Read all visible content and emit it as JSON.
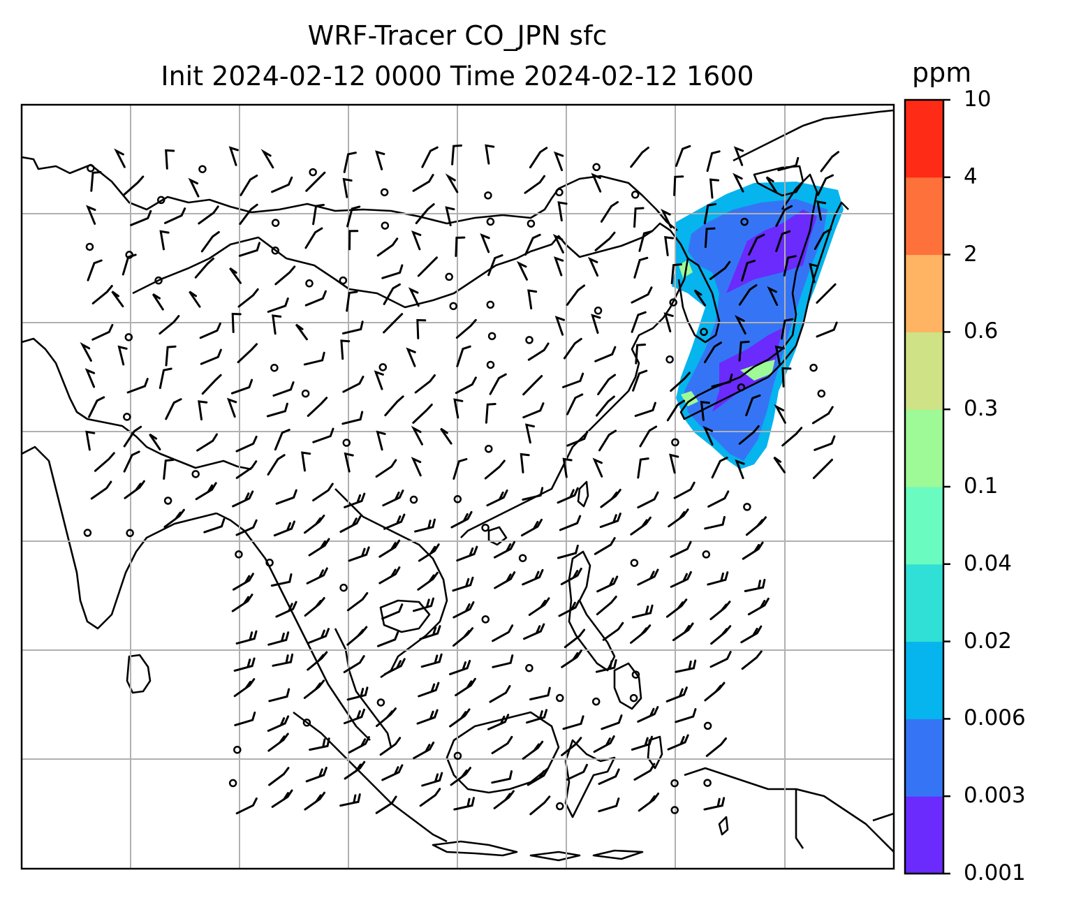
{
  "title": {
    "line1": "WRF-Tracer CO_JPN sfc",
    "line2": "Init 2024-02-12 0000 Time 2024-02-12 1600"
  },
  "colorbar": {
    "unit": "ppm",
    "levels": [
      "0.001",
      "0.003",
      "0.006",
      "0.02",
      "0.04",
      "0.1",
      "0.3",
      "0.6",
      "2",
      "4",
      "10"
    ],
    "colors": [
      "#6a2bfc",
      "#3575f5",
      "#06b4ee",
      "#30dfd5",
      "#6afbc0",
      "#9efa97",
      "#d0e286",
      "#feb463",
      "#fe713a",
      "#fe2b16"
    ]
  },
  "map": {
    "land_outline_color": "#000000",
    "gridline_color": "#b0b0b0",
    "plume_color": "#3575f5",
    "plume_inner_color": "#6a2bfc",
    "plume_edge_color": "#06b4ee"
  }
}
